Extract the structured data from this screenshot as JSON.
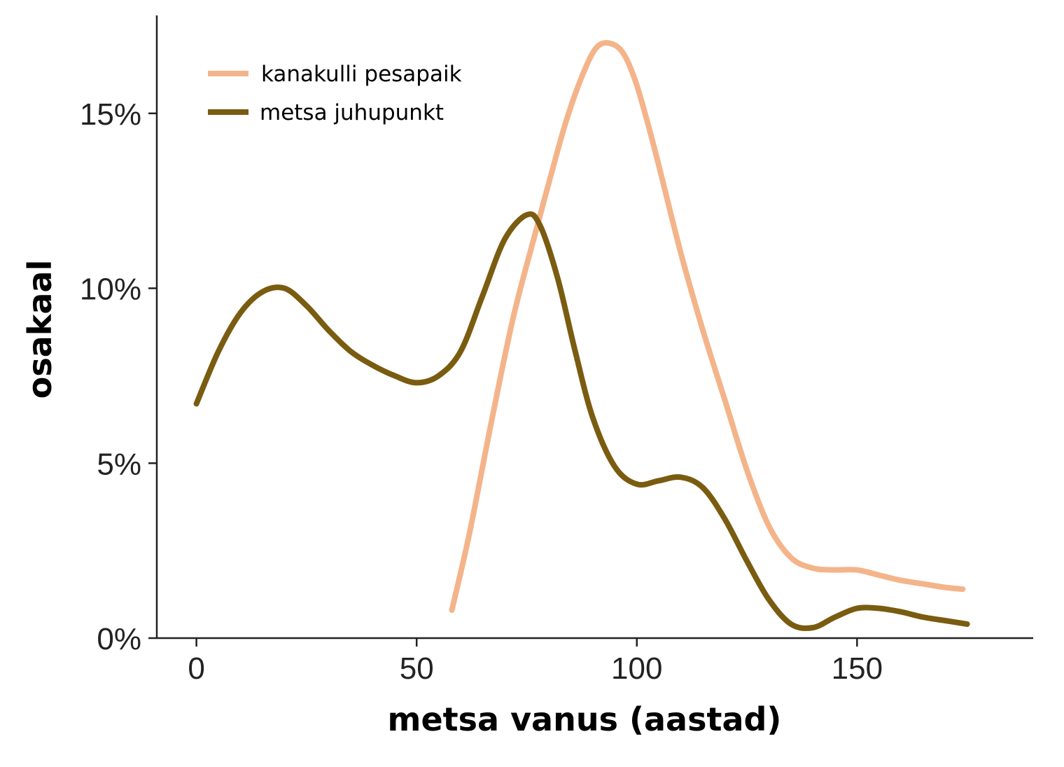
{
  "chart_data": {
    "type": "line",
    "xlabel": "metsa vanus (aastad)",
    "ylabel": "osakaal",
    "xlim": [
      -9,
      190
    ],
    "ylim": [
      0,
      17.8
    ],
    "xticks": [
      0,
      50,
      100,
      150
    ],
    "xtick_labels": [
      "0",
      "50",
      "100",
      "150"
    ],
    "yticks": [
      0,
      5,
      10,
      15
    ],
    "ytick_labels": [
      "0%",
      "5%",
      "10%",
      "15%"
    ],
    "grid": false,
    "legend_position": "top-left",
    "series": [
      {
        "name": "kanakulli pesapaik",
        "color": "#f4b48a",
        "x": [
          58,
          62,
          67,
          72,
          77,
          80,
          84,
          88,
          91,
          94,
          97,
          100,
          104,
          110,
          115,
          120,
          125,
          130,
          135,
          140,
          145,
          150,
          155,
          160,
          165,
          170,
          174
        ],
        "y": [
          0.8,
          3.0,
          6.2,
          9.2,
          11.6,
          13.0,
          14.8,
          16.2,
          16.9,
          17.0,
          16.7,
          15.8,
          14.0,
          11.0,
          8.8,
          6.8,
          4.8,
          3.2,
          2.3,
          2.0,
          1.95,
          1.95,
          1.8,
          1.65,
          1.55,
          1.45,
          1.4
        ]
      },
      {
        "name": "metsa juhupunkt",
        "color": "#7a5c10",
        "x": [
          0,
          5,
          10,
          15,
          20,
          25,
          30,
          35,
          40,
          45,
          50,
          55,
          60,
          65,
          70,
          75,
          78,
          82,
          86,
          90,
          95,
          100,
          105,
          110,
          115,
          120,
          125,
          130,
          135,
          140,
          145,
          150,
          155,
          160,
          165,
          170,
          175
        ],
        "y": [
          6.7,
          8.2,
          9.3,
          9.9,
          10.0,
          9.5,
          8.8,
          8.2,
          7.8,
          7.5,
          7.3,
          7.5,
          8.2,
          9.8,
          11.4,
          12.1,
          11.8,
          10.3,
          8.2,
          6.3,
          4.9,
          4.4,
          4.5,
          4.6,
          4.3,
          3.4,
          2.2,
          1.1,
          0.4,
          0.3,
          0.6,
          0.85,
          0.85,
          0.75,
          0.6,
          0.5,
          0.4
        ]
      }
    ]
  }
}
